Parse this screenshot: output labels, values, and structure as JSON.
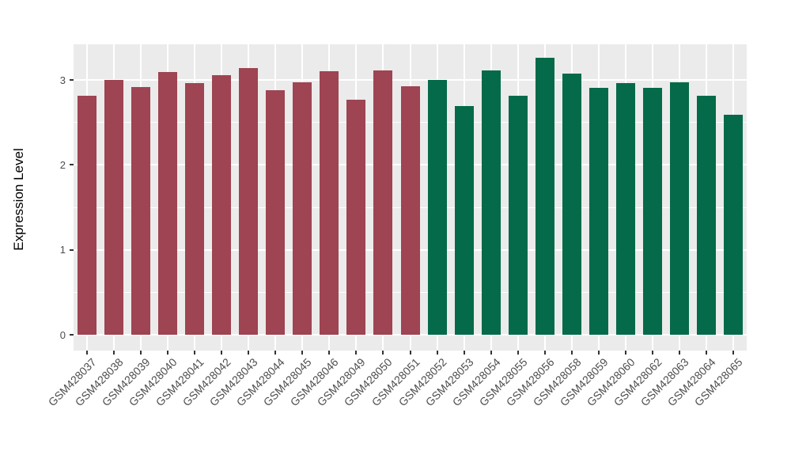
{
  "figure": {
    "background": "#FFFFFF",
    "panel_background": "#EBEBEB",
    "grid_color": "#FFFFFF",
    "tick_mark_color": "#333333",
    "tick_label_color": "#4D4D4D",
    "axis_title_color": "#000000"
  },
  "chart_data": {
    "type": "bar",
    "title": "",
    "xlabel": "",
    "ylabel": "Expression Level",
    "categories": [
      "GSM428037",
      "GSM428038",
      "GSM428039",
      "GSM428040",
      "GSM428041",
      "GSM428042",
      "GSM428043",
      "GSM428044",
      "GSM428045",
      "GSM428046",
      "GSM428049",
      "GSM428050",
      "GSM428051",
      "GSM428052",
      "GSM428053",
      "GSM428054",
      "GSM428055",
      "GSM428056",
      "GSM428058",
      "GSM428059",
      "GSM428060",
      "GSM428062",
      "GSM428063",
      "GSM428064",
      "GSM428065"
    ],
    "values": [
      2.81,
      3.0,
      2.92,
      3.09,
      2.96,
      3.06,
      3.14,
      2.88,
      2.97,
      3.1,
      2.77,
      3.11,
      2.93,
      3.0,
      2.69,
      3.11,
      2.81,
      3.26,
      3.07,
      2.91,
      2.96,
      2.91,
      2.97,
      2.81,
      2.59
    ],
    "bar_colors": [
      "#9E4452",
      "#9E4452",
      "#9E4452",
      "#9E4452",
      "#9E4452",
      "#9E4452",
      "#9E4452",
      "#9E4452",
      "#9E4452",
      "#9E4452",
      "#9E4452",
      "#9E4452",
      "#9E4452",
      "#056A49",
      "#056A49",
      "#056A49",
      "#056A49",
      "#056A49",
      "#056A49",
      "#056A49",
      "#056A49",
      "#056A49",
      "#056A49",
      "#056A49",
      "#056A49"
    ],
    "groups": [
      {
        "name": "group-red",
        "color": "#9E4452",
        "first": "GSM428037",
        "last": "GSM428051",
        "count": 13
      },
      {
        "name": "group-green",
        "color": "#056A49",
        "first": "GSM428052",
        "last": "GSM428065",
        "count": 12
      }
    ],
    "yticks": [
      "0",
      "1",
      "2",
      "3"
    ],
    "ytick_values": [
      0,
      1,
      2,
      3
    ],
    "yminor_values": [
      0.5,
      1.5,
      2.5
    ],
    "ylim": [
      -0.19,
      3.43
    ],
    "grid": "white major+minor horizontal lines and vertical category lines on grey panel",
    "legend_position": "none"
  }
}
